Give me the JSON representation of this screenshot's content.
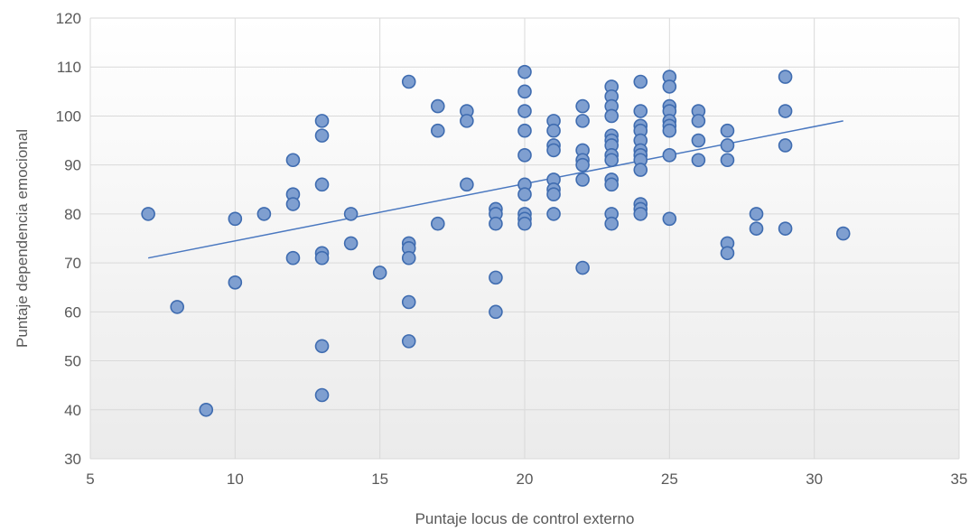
{
  "chart_data": {
    "type": "scatter",
    "title": "",
    "xlabel": "Puntaje locus de control externo",
    "ylabel": "Puntaje dependencia emocional",
    "xlim": [
      5,
      35
    ],
    "ylim": [
      30,
      120
    ],
    "xticks": [
      5,
      10,
      15,
      20,
      25,
      30,
      35
    ],
    "yticks": [
      30,
      40,
      50,
      60,
      70,
      80,
      90,
      100,
      110,
      120
    ],
    "grid": true,
    "background_gradient": [
      "#ffffff",
      "#ebebeb"
    ],
    "point_fill": "#7f9fd0",
    "point_stroke": "#3f6cb0",
    "trendline_color": "#4a78c0",
    "points": [
      [
        7,
        80
      ],
      [
        8,
        61
      ],
      [
        9,
        40
      ],
      [
        10,
        79
      ],
      [
        10,
        66
      ],
      [
        11,
        80
      ],
      [
        12,
        91
      ],
      [
        12,
        84
      ],
      [
        12,
        82
      ],
      [
        12,
        71
      ],
      [
        13,
        99
      ],
      [
        13,
        96
      ],
      [
        13,
        86
      ],
      [
        13,
        72
      ],
      [
        13,
        71
      ],
      [
        13,
        53
      ],
      [
        13,
        43
      ],
      [
        14,
        80
      ],
      [
        14,
        74
      ],
      [
        15,
        68
      ],
      [
        16,
        107
      ],
      [
        16,
        74
      ],
      [
        16,
        73
      ],
      [
        16,
        71
      ],
      [
        16,
        62
      ],
      [
        16,
        54
      ],
      [
        17,
        102
      ],
      [
        17,
        97
      ],
      [
        17,
        78
      ],
      [
        18,
        101
      ],
      [
        18,
        99
      ],
      [
        18,
        86
      ],
      [
        19,
        81
      ],
      [
        19,
        80
      ],
      [
        19,
        78
      ],
      [
        19,
        67
      ],
      [
        19,
        60
      ],
      [
        20,
        109
      ],
      [
        20,
        105
      ],
      [
        20,
        101
      ],
      [
        20,
        97
      ],
      [
        20,
        92
      ],
      [
        20,
        86
      ],
      [
        20,
        84
      ],
      [
        20,
        80
      ],
      [
        20,
        79
      ],
      [
        20,
        78
      ],
      [
        21,
        99
      ],
      [
        21,
        97
      ],
      [
        21,
        94
      ],
      [
        21,
        93
      ],
      [
        21,
        87
      ],
      [
        21,
        85
      ],
      [
        21,
        84
      ],
      [
        21,
        80
      ],
      [
        22,
        102
      ],
      [
        22,
        99
      ],
      [
        22,
        93
      ],
      [
        22,
        91
      ],
      [
        22,
        90
      ],
      [
        22,
        87
      ],
      [
        22,
        69
      ],
      [
        23,
        106
      ],
      [
        23,
        104
      ],
      [
        23,
        102
      ],
      [
        23,
        100
      ],
      [
        23,
        96
      ],
      [
        23,
        95
      ],
      [
        23,
        94
      ],
      [
        23,
        92
      ],
      [
        23,
        91
      ],
      [
        23,
        87
      ],
      [
        23,
        86
      ],
      [
        23,
        80
      ],
      [
        23,
        78
      ],
      [
        24,
        107
      ],
      [
        24,
        101
      ],
      [
        24,
        98
      ],
      [
        24,
        97
      ],
      [
        24,
        95
      ],
      [
        24,
        93
      ],
      [
        24,
        92
      ],
      [
        24,
        91
      ],
      [
        24,
        89
      ],
      [
        24,
        82
      ],
      [
        24,
        81
      ],
      [
        24,
        80
      ],
      [
        25,
        108
      ],
      [
        25,
        106
      ],
      [
        25,
        102
      ],
      [
        25,
        101
      ],
      [
        25,
        99
      ],
      [
        25,
        98
      ],
      [
        25,
        97
      ],
      [
        25,
        92
      ],
      [
        25,
        79
      ],
      [
        26,
        101
      ],
      [
        26,
        99
      ],
      [
        26,
        95
      ],
      [
        26,
        91
      ],
      [
        27,
        97
      ],
      [
        27,
        94
      ],
      [
        27,
        91
      ],
      [
        27,
        74
      ],
      [
        27,
        72
      ],
      [
        28,
        80
      ],
      [
        28,
        77
      ],
      [
        29,
        108
      ],
      [
        29,
        101
      ],
      [
        29,
        94
      ],
      [
        29,
        77
      ],
      [
        31,
        76
      ]
    ],
    "trendline": {
      "x": [
        7,
        31
      ],
      "y": [
        71,
        99
      ]
    }
  }
}
